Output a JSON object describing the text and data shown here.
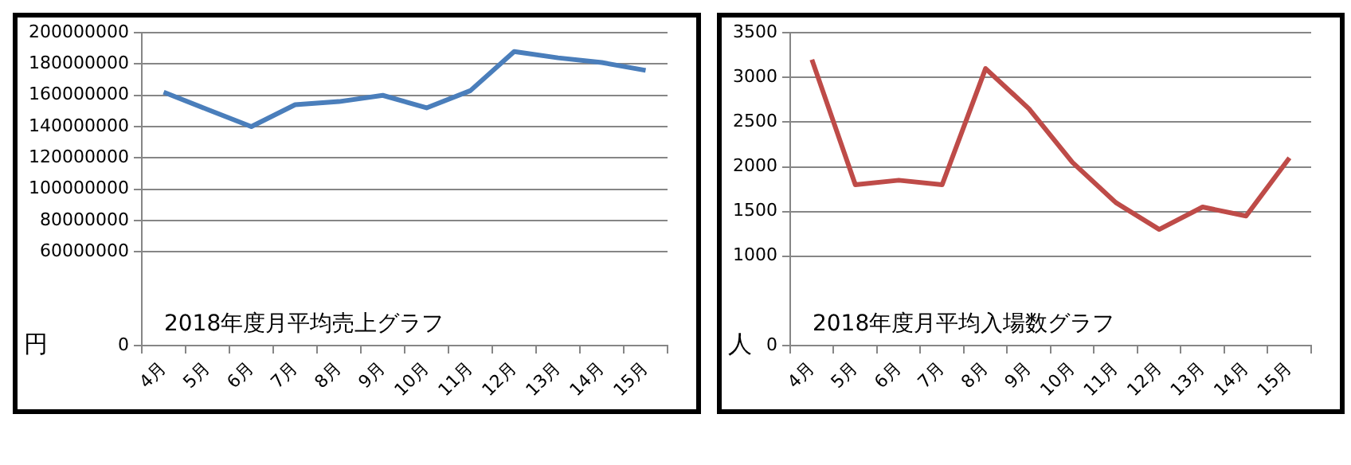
{
  "chart_data": [
    {
      "type": "line",
      "title": "2018年度月平均売上グラフ",
      "ylabel": "円",
      "categories": [
        "4月",
        "5月",
        "6月",
        "7月",
        "8月",
        "9月",
        "10月",
        "11月",
        "12月",
        "13月",
        "14月",
        "15月"
      ],
      "series": [
        {
          "color": "#4a7ebb",
          "values": [
            162000000,
            151000000,
            140000000,
            154000000,
            156000000,
            160000000,
            152000000,
            163000000,
            188000000,
            184000000,
            181000000,
            176000000
          ]
        }
      ],
      "ylim": [
        0,
        200000000
      ],
      "yticks": [
        0,
        60000000,
        80000000,
        100000000,
        120000000,
        140000000,
        160000000,
        180000000,
        200000000
      ],
      "grid": "y"
    },
    {
      "type": "line",
      "title": "2018年度月平均入場数グラフ",
      "ylabel": "人",
      "categories": [
        "4月",
        "5月",
        "6月",
        "7月",
        "8月",
        "9月",
        "10月",
        "11月",
        "12月",
        "13月",
        "14月",
        "15月"
      ],
      "series": [
        {
          "color": "#be4b48",
          "values": [
            3200,
            1800,
            1850,
            1800,
            3100,
            2650,
            2050,
            1600,
            1300,
            1550,
            1450,
            2100
          ]
        }
      ],
      "ylim": [
        0,
        3500
      ],
      "yticks": [
        0,
        1000,
        1500,
        2000,
        2500,
        3000,
        3500
      ],
      "grid": "y"
    }
  ]
}
